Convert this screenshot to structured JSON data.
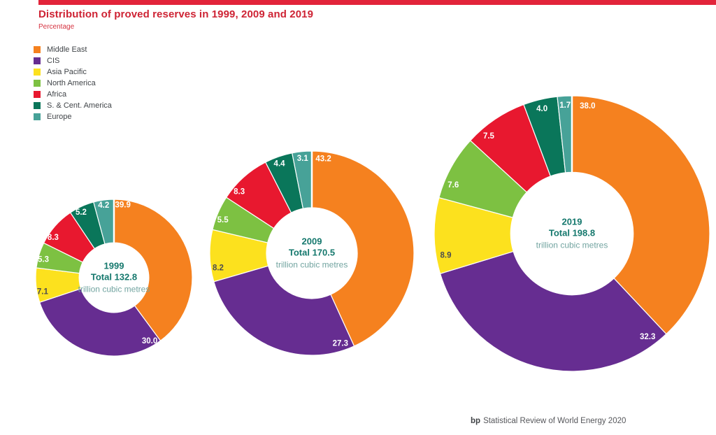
{
  "page": {
    "title": "Distribution of proved reserves in 1999, 2009 and 2019",
    "subtitle": "Percentage"
  },
  "legend": {
    "position": "top-left",
    "items": [
      {
        "label": "Middle East",
        "color": "#F5811F"
      },
      {
        "label": "CIS",
        "color": "#662D91"
      },
      {
        "label": "Asia Pacific",
        "color": "#FCE11E"
      },
      {
        "label": "North America",
        "color": "#7DC142"
      },
      {
        "label": "Africa",
        "color": "#E8182F"
      },
      {
        "label": "S. & Cent. America",
        "color": "#0A765A"
      },
      {
        "label": "Europe",
        "color": "#47A298"
      }
    ]
  },
  "footer": {
    "brand": "bp",
    "text": "Statistical Review of World Energy 2020"
  },
  "chart_data": {
    "type": "pie",
    "subtype": "donut-small-multiples",
    "title": "Distribution of proved reserves in 1999, 2009 and 2019",
    "value_unit": "Percentage",
    "grid": false,
    "legend_position": "top-left",
    "categories": [
      "Middle East",
      "CIS",
      "Asia Pacific",
      "North America",
      "Africa",
      "S. & Cent. America",
      "Europe"
    ],
    "series": [
      {
        "name": "1999",
        "total": 132.8,
        "total_label": "Total 132.8",
        "unit_label": "trillion cubic metres",
        "values": [
          39.9,
          30.0,
          7.1,
          5.3,
          8.3,
          5.2,
          4.2
        ]
      },
      {
        "name": "2009",
        "total": 170.5,
        "total_label": "Total 170.5",
        "unit_label": "trillion cubic metres",
        "values": [
          43.2,
          27.3,
          8.2,
          5.5,
          8.3,
          4.4,
          3.1
        ]
      },
      {
        "name": "2019",
        "total": 198.8,
        "total_label": "Total 198.8",
        "unit_label": "trillion cubic metres",
        "values": [
          38.0,
          32.3,
          8.9,
          7.6,
          7.5,
          4.0,
          1.7
        ]
      }
    ]
  }
}
